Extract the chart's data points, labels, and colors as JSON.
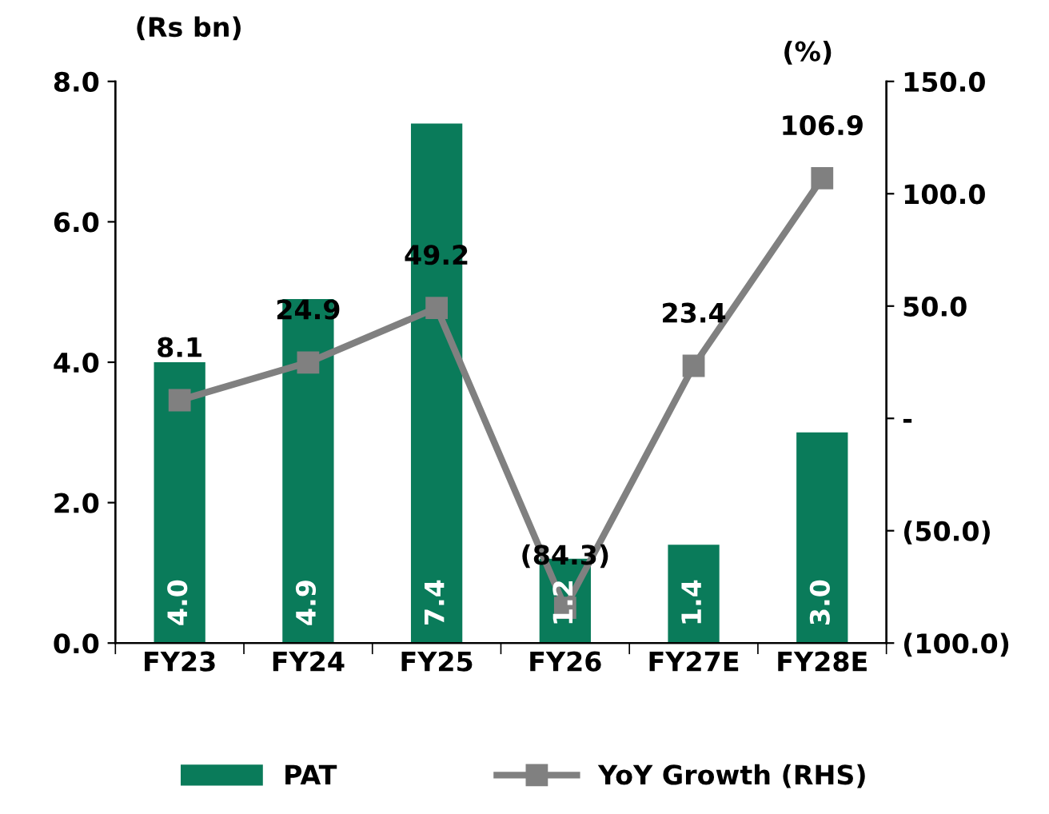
{
  "chart_data": {
    "type": "bar",
    "ylabel": "(Rs bn)",
    "y2label": "(%)",
    "categories": [
      "FY23",
      "FY24",
      "FY25",
      "FY26",
      "FY27E",
      "FY28E"
    ],
    "series": [
      {
        "name": "PAT",
        "color": "#0a7b5a",
        "values": [
          4.0,
          4.9,
          7.4,
          1.2,
          1.4,
          3.0
        ],
        "value_labels": [
          "4.0",
          "4.9",
          "7.4",
          "1.2",
          "1.4",
          "3.0"
        ]
      },
      {
        "name": "YoY Growth (RHS)",
        "type": "line",
        "axis": "y2",
        "color": "#808080",
        "marker": "square",
        "values": [
          8.1,
          24.9,
          49.2,
          -84.3,
          23.4,
          106.9
        ],
        "value_labels": [
          "8.1",
          "24.9",
          "49.2",
          "(84.3)",
          "23.4",
          "106.9"
        ]
      }
    ],
    "ylim": [
      0,
      8
    ],
    "yticks": [
      {
        "value": 0,
        "label": "0.0"
      },
      {
        "value": 2,
        "label": "2.0"
      },
      {
        "value": 4,
        "label": "4.0"
      },
      {
        "value": 6,
        "label": "6.0"
      },
      {
        "value": 8,
        "label": "8.0"
      }
    ],
    "y2lim": [
      -100,
      150
    ],
    "y2ticks": [
      {
        "value": -100,
        "label": "(100.0)"
      },
      {
        "value": -50,
        "label": "(50.0)"
      },
      {
        "value": 0,
        "label": "-"
      },
      {
        "value": 50,
        "label": "50.0"
      },
      {
        "value": 100,
        "label": "100.0"
      },
      {
        "value": 150,
        "label": "150.0"
      }
    ],
    "grid": false,
    "legend": "bottom"
  }
}
